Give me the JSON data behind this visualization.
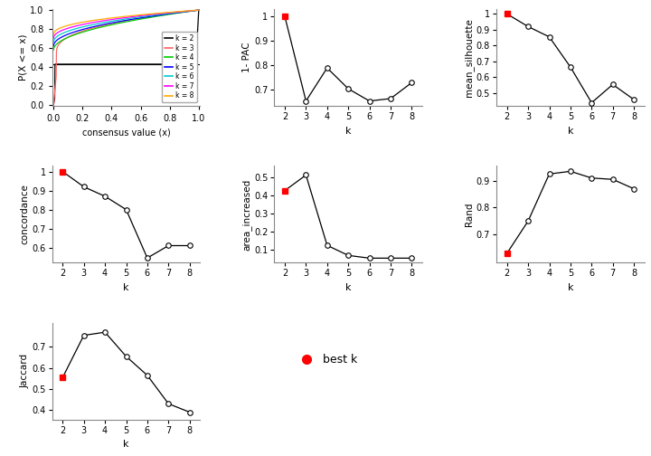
{
  "k": [
    2,
    3,
    4,
    5,
    6,
    7,
    8
  ],
  "pac_1minus": [
    1.0,
    0.655,
    0.79,
    0.705,
    0.655,
    0.665,
    0.73
  ],
  "mean_silhouette": [
    1.0,
    0.92,
    0.855,
    0.665,
    0.44,
    0.555,
    0.46
  ],
  "concordance": [
    1.0,
    0.92,
    0.87,
    0.8,
    0.545,
    0.61,
    0.61
  ],
  "area_increased": [
    0.425,
    0.51,
    0.125,
    0.07,
    0.055,
    0.055,
    0.055
  ],
  "rand": [
    0.63,
    0.75,
    0.925,
    0.935,
    0.91,
    0.905,
    0.87
  ],
  "jaccard": [
    0.555,
    0.755,
    0.77,
    0.655,
    0.565,
    0.43,
    0.39
  ],
  "best_k_pac": 2,
  "best_k_sil": 2,
  "best_k_conc": 2,
  "best_k_area": 2,
  "best_k_rand": 2,
  "best_k_jacc": 2,
  "ecdf_colors": [
    "#000000",
    "#ff6666",
    "#00cc00",
    "#0000ff",
    "#00cccc",
    "#ff00ff",
    "#ffaa00"
  ],
  "ecdf_labels": [
    "k = 2",
    "k = 3",
    "k = 4",
    "k = 5",
    "k = 6",
    "k = 7",
    "k = 8"
  ],
  "bg_color": "#ffffff",
  "line_color": "#000000",
  "best_point_color": "#ff0000",
  "open_circle_color": "#000000",
  "font_family": "sans-serif"
}
